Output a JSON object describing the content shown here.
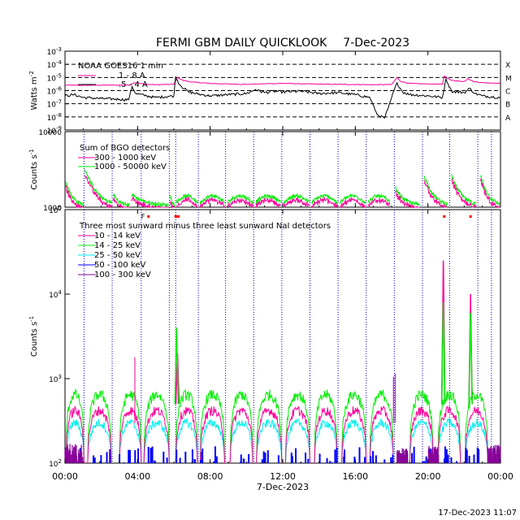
{
  "page": {
    "title": "FERMI GBM DAILY QUICKLOOK",
    "date": "7-Dec-2023",
    "generated": "17-Dec-2023 11:07"
  },
  "x_axis": {
    "label": "7-Dec-2023",
    "ticks": [
      "00:00",
      "04:00",
      "08:00",
      "12:00",
      "16:00",
      "20:00",
      "00:00"
    ],
    "range_hours": [
      0,
      24
    ]
  },
  "colors": {
    "pink": "#ff0099",
    "green": "#00ee00",
    "cyan": "#00eeee",
    "blue": "#0000ff",
    "purple": "#880099",
    "red": "#ff0000",
    "black": "#000000",
    "guide": "#0000cc"
  },
  "chart_data": [
    {
      "type": "line",
      "panel": "goes",
      "title": "NOAA GOES16 1 min",
      "ylabel": "Watts m",
      "ylabel_exp": "-2",
      "log": true,
      "ylim_exp": [
        -9,
        -3
      ],
      "y_ticks": [
        {
          "base": "10",
          "exp": "-3"
        },
        {
          "base": "10",
          "exp": "-4"
        },
        {
          "base": "10",
          "exp": "-5"
        },
        {
          "base": "10",
          "exp": "-6"
        },
        {
          "base": "10",
          "exp": "-7"
        },
        {
          "base": "10",
          "exp": "-8"
        },
        {
          "base": "10",
          "exp": "-9"
        }
      ],
      "flare_classes": [
        {
          "label": "X",
          "exp": -4
        },
        {
          "label": "M",
          "exp": -5
        },
        {
          "label": "C",
          "exp": -6
        },
        {
          "label": "B",
          "exp": -7
        },
        {
          "label": "A",
          "exp": -8
        }
      ],
      "series": [
        {
          "name": "1 - 8 A",
          "color": "#ff0099",
          "x": [
            0,
            1,
            2,
            3,
            3.6,
            3.8,
            4.5,
            5,
            6,
            6.2,
            6.5,
            7,
            8,
            9,
            10,
            11,
            12,
            13,
            14,
            15,
            16,
            17,
            18,
            18.3,
            18.5,
            19,
            20,
            20.8,
            20.9,
            21.3,
            22,
            22.2,
            22.5,
            23,
            24
          ],
          "y": [
            2.6e-06,
            2.5e-06,
            2.6e-06,
            2.6e-06,
            2.7e-06,
            4e-06,
            3e-06,
            2.8e-06,
            3e-06,
            1e-05,
            6e-06,
            4.5e-06,
            3.5e-06,
            3.2e-06,
            3e-06,
            3.3e-06,
            3.6e-06,
            3.3e-06,
            3.1e-06,
            3e-06,
            2.9e-06,
            2.8e-06,
            2.9e-06,
            1e-05,
            5e-06,
            3.5e-06,
            3.2e-06,
            3e-06,
            1.3e-05,
            6e-06,
            5e-06,
            8e-06,
            5e-06,
            4e-06,
            3.6e-06
          ]
        },
        {
          "name": ".5 - 4 A",
          "color": "#000000",
          "x": [
            0,
            0.5,
            1,
            2,
            3,
            3.5,
            3.7,
            3.9,
            4.5,
            5,
            6,
            6.1,
            6.3,
            6.8,
            7.5,
            8,
            9,
            10,
            10.5,
            11,
            11.5,
            12,
            13,
            14,
            15,
            16,
            16.8,
            17.2,
            17.6,
            17.8,
            18,
            18.3,
            18.6,
            19,
            20,
            20.8,
            21,
            21.3,
            22,
            22.3,
            22.6,
            23,
            24
          ],
          "y": [
            4e-07,
            5e-07,
            3e-07,
            2.5e-07,
            2.2e-07,
            2e-07,
            2e-06,
            6e-07,
            4e-07,
            3e-07,
            4e-07,
            1.2e-05,
            3e-06,
            8e-07,
            5e-07,
            4e-07,
            5e-07,
            6e-07,
            1.2e-06,
            7e-07,
            9e-07,
            8e-07,
            9e-07,
            6e-07,
            7e-07,
            5e-07,
            3e-07,
            1.5e-08,
            8e-09,
            4e-08,
            3e-07,
            4e-06,
            8e-07,
            5e-07,
            4e-07,
            3e-07,
            8e-06,
            9e-07,
            7e-07,
            1.5e-06,
            6e-07,
            4e-07,
            3e-07
          ]
        }
      ]
    },
    {
      "type": "line",
      "panel": "bgo",
      "title": "Sum of BGO detectors",
      "ylabel": "Counts s",
      "ylabel_exp": "-1",
      "log": true,
      "ylim": [
        1000,
        10000
      ],
      "y_tick_labels": [
        "10000",
        "1000"
      ],
      "series": [
        {
          "name": "300 - 1000 keV",
          "color": "#ff0099"
        },
        {
          "name": "1000 - 50000 keV",
          "color": "#00ee00"
        }
      ]
    },
    {
      "type": "line",
      "panel": "nai",
      "title": "Three most sunward minus three least sunward NaI detectors",
      "ylabel": "Counts s",
      "ylabel_exp": "-1",
      "log": true,
      "ylim": [
        100,
        100000
      ],
      "y_ticks": [
        {
          "base": "10",
          "exp": "5"
        },
        {
          "base": "10",
          "exp": "4"
        },
        {
          "base": "10",
          "exp": "3"
        },
        {
          "base": "10",
          "exp": "2"
        }
      ],
      "annotation": "F",
      "flare_times": [
        6.2,
        20.85,
        22.35
      ],
      "series": [
        {
          "name": "10 - 14 keV",
          "color": "#ff0099",
          "peaks": [
            {
              "x": 6.2,
              "y": 2000
            },
            {
              "x": 20.85,
              "y": 25000
            },
            {
              "x": 22.35,
              "y": 10000
            }
          ]
        },
        {
          "name": "14 - 25 keV",
          "color": "#00ee00",
          "peaks": [
            {
              "x": 6.15,
              "y": 4000
            },
            {
              "x": 20.85,
              "y": 8000
            },
            {
              "x": 22.35,
              "y": 6000
            }
          ]
        },
        {
          "name": "25 - 50 keV",
          "color": "#00eeee"
        },
        {
          "name": "50 - 100 keV",
          "color": "#0000ff"
        },
        {
          "name": "100 - 300 keV",
          "color": "#880099"
        }
      ]
    }
  ]
}
